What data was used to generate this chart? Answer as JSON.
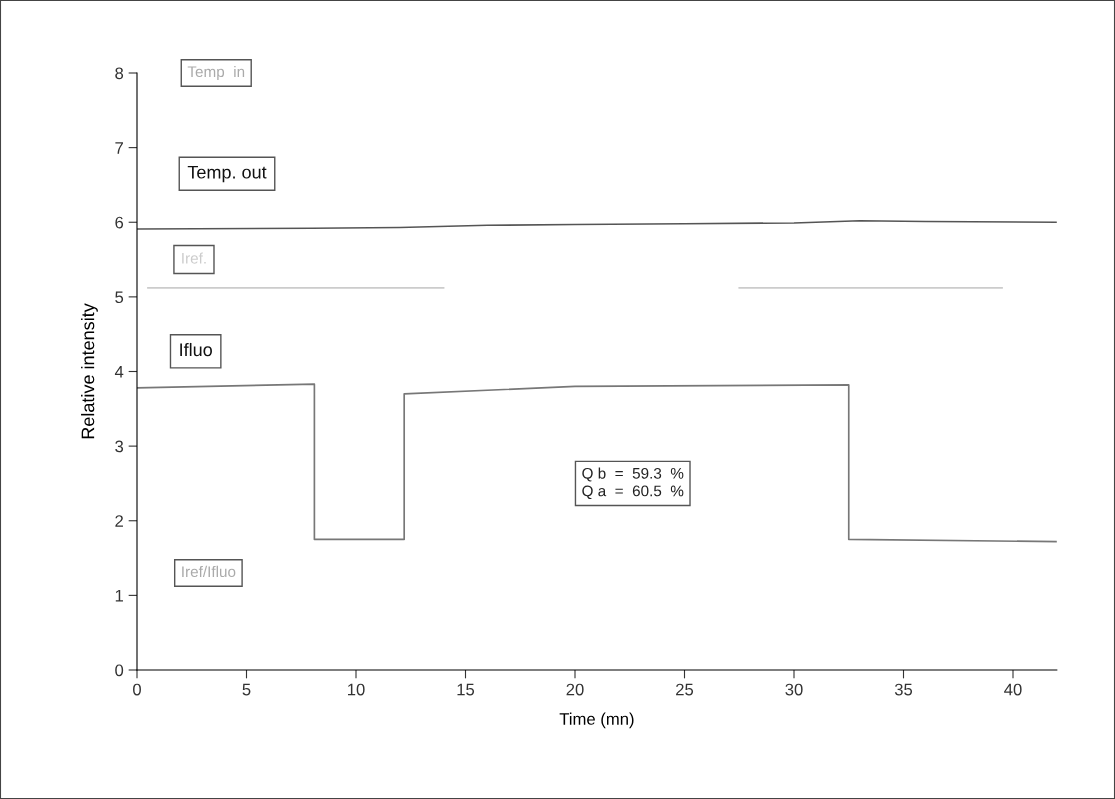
{
  "chart_data": {
    "type": "line",
    "xlabel": "Time (mn)",
    "ylabel": "Relative intensity",
    "xlim": [
      0,
      42
    ],
    "xticks": [
      0,
      5,
      10,
      15,
      20,
      25,
      30,
      35,
      40
    ],
    "ylim": [
      0,
      8
    ],
    "yticks": [
      0,
      1,
      2,
      3,
      4,
      5,
      6,
      7,
      8
    ],
    "grid": false,
    "legend": false,
    "marker": "none",
    "line_style": "solid",
    "series": [
      {
        "name": "Temp. out",
        "color": "#555555",
        "x": [
          0,
          8,
          12,
          16,
          20,
          25,
          30,
          33,
          36,
          42
        ],
        "values": [
          5.91,
          5.92,
          5.93,
          5.96,
          5.97,
          5.98,
          5.99,
          6.02,
          6.01,
          6.0
        ]
      },
      {
        "name": "Iref.",
        "color": "#cccccc",
        "x": [
          0.5,
          7,
          14,
          20,
          27.5,
          33,
          39.5
        ],
        "values": [
          5.12,
          5.12,
          5.12,
          null,
          5.12,
          5.12,
          5.12
        ]
      },
      {
        "name": "Ifluo",
        "color": "#777777",
        "x": [
          0,
          8.1,
          8.1,
          12.2,
          12.2,
          20,
          32.5,
          32.5,
          42
        ],
        "values": [
          3.78,
          3.83,
          1.75,
          1.75,
          3.7,
          3.8,
          3.82,
          1.75,
          1.72
        ]
      }
    ],
    "annotations": [
      "Temp  in",
      "Iref/Ifluo",
      "Q b  =  59.3  %\nQ a  =  60.5  %"
    ]
  }
}
